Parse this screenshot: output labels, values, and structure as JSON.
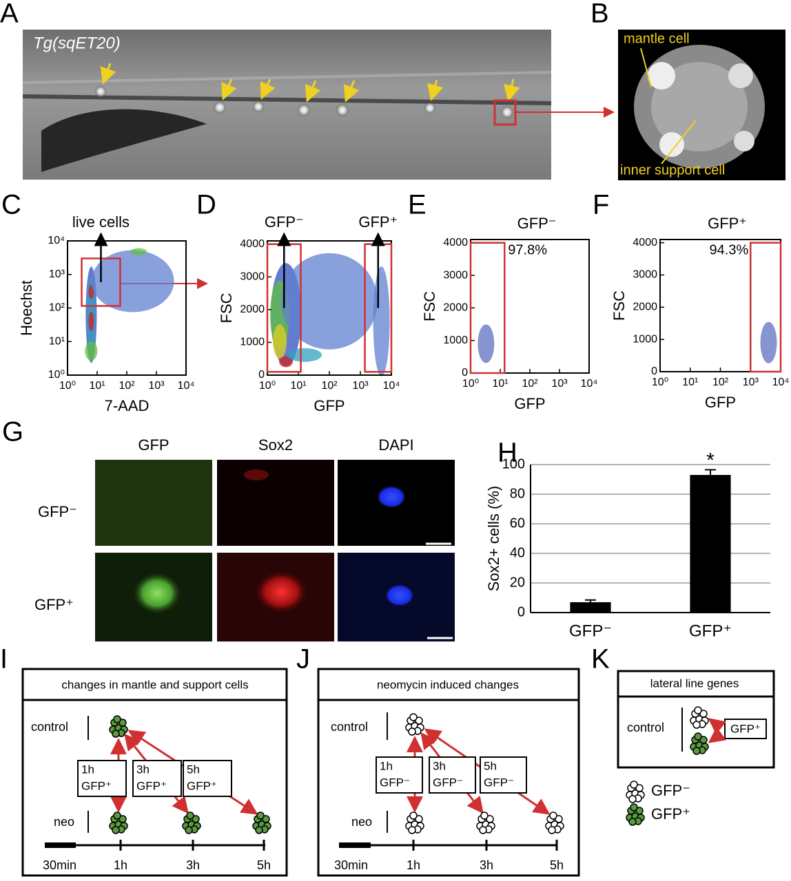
{
  "panels": {
    "A": {
      "label": "A",
      "annotation": "Tg(sqET20)"
    },
    "B": {
      "label": "B",
      "annotations": [
        "mantle cell",
        "inner support cell"
      ]
    },
    "G": {
      "label": "G",
      "columns": [
        "GFP",
        "Sox2",
        "DAPI"
      ],
      "rows": [
        "GFP⁻",
        "GFP⁺"
      ]
    },
    "I": {
      "label": "I",
      "title": "changes in mantle and support cells",
      "rows": [
        "control",
        "neo"
      ],
      "times": [
        "30min",
        "1h",
        "3h",
        "5h"
      ],
      "boxes": [
        [
          "1h",
          "GFP⁺"
        ],
        [
          "3h",
          "GFP⁺"
        ],
        [
          "5h",
          "GFP⁺"
        ]
      ]
    },
    "J": {
      "label": "J",
      "title": "neomycin induced changes",
      "rows": [
        "control",
        "neo"
      ],
      "times": [
        "30min",
        "1h",
        "3h",
        "5h"
      ],
      "boxes": [
        [
          "1h",
          "GFP⁻"
        ],
        [
          "3h",
          "GFP⁻"
        ],
        [
          "5h",
          "GFP⁻"
        ]
      ]
    },
    "K": {
      "label": "K",
      "title": "lateral line genes",
      "row": "control",
      "box": "GFP⁺",
      "legend": [
        "GFP⁻",
        "GFP⁺"
      ]
    }
  },
  "chart_data": [
    {
      "type": "density",
      "panel_label": "C",
      "xlabel": "7-AAD",
      "ylabel": "Hoechst",
      "xscale": "log",
      "yscale": "log",
      "xlim": [
        1,
        10000
      ],
      "ylim": [
        1,
        10000
      ],
      "xticks": [
        {
          "value": 1,
          "label": "10⁰"
        },
        {
          "value": 10,
          "label": "10¹"
        },
        {
          "value": 100,
          "label": "10²"
        },
        {
          "value": 1000,
          "label": "10³"
        },
        {
          "value": 10000,
          "label": "10⁴"
        }
      ],
      "yticks": [
        {
          "value": 1,
          "label": "10⁰"
        },
        {
          "value": 10,
          "label": "10¹"
        },
        {
          "value": 100,
          "label": "10²"
        },
        {
          "value": 1000,
          "label": "10³"
        },
        {
          "value": 10000,
          "label": "10⁴"
        }
      ],
      "gates": [
        {
          "label": "live cells",
          "xlim": [
            3,
            60
          ],
          "ylim": [
            115,
            3000
          ]
        }
      ]
    },
    {
      "type": "density",
      "panel_label": "D",
      "xlabel": "GFP",
      "ylabel": "FSC",
      "xscale": "log",
      "yscale": "linear",
      "xlim": [
        1,
        10000
      ],
      "ylim": [
        0,
        4100
      ],
      "xticks": [
        {
          "value": 1,
          "label": "10⁰"
        },
        {
          "value": 10,
          "label": "10¹"
        },
        {
          "value": 100,
          "label": "10²"
        },
        {
          "value": 1000,
          "label": "10³"
        },
        {
          "value": 10000,
          "label": "10⁴"
        }
      ],
      "yticks": [
        0,
        1000,
        2000,
        3000,
        4000
      ],
      "gates": [
        {
          "label": "GFP⁻",
          "xlim": [
            1,
            12
          ],
          "ylim": [
            100,
            4000
          ]
        },
        {
          "label": "GFP⁺",
          "xlim": [
            1400,
            10000
          ],
          "ylim": [
            100,
            4000
          ]
        }
      ]
    },
    {
      "type": "density",
      "panel_label": "E",
      "title": "GFP⁻",
      "xlabel": "GFP",
      "ylabel": "FSC",
      "xscale": "log",
      "yscale": "linear",
      "xlim": [
        1,
        10000
      ],
      "ylim": [
        0,
        4100
      ],
      "xticks": [
        {
          "value": 1,
          "label": "10⁰"
        },
        {
          "value": 10,
          "label": "10¹"
        },
        {
          "value": 100,
          "label": "10²"
        },
        {
          "value": 1000,
          "label": "10³"
        },
        {
          "value": 10000,
          "label": "10⁴"
        }
      ],
      "yticks": [
        0,
        1000,
        2000,
        3000,
        4000
      ],
      "gates": [
        {
          "label": "97.8%",
          "xlim": [
            1,
            14
          ],
          "ylim": [
            0,
            4000
          ]
        }
      ]
    },
    {
      "type": "density",
      "panel_label": "F",
      "title": "GFP⁺",
      "xlabel": "GFP",
      "ylabel": "FSC",
      "xscale": "log",
      "yscale": "linear",
      "xlim": [
        1,
        10000
      ],
      "ylim": [
        0,
        4100
      ],
      "xticks": [
        {
          "value": 1,
          "label": "10⁰"
        },
        {
          "value": 10,
          "label": "10¹"
        },
        {
          "value": 100,
          "label": "10²"
        },
        {
          "value": 1000,
          "label": "10³"
        },
        {
          "value": 10000,
          "label": "10⁴"
        }
      ],
      "yticks": [
        0,
        1000,
        2000,
        3000,
        4000
      ],
      "gates": [
        {
          "label": "94.3%",
          "xlim": [
            1000,
            10000
          ],
          "ylim": [
            0,
            4000
          ]
        }
      ]
    },
    {
      "type": "bar",
      "panel_label": "H",
      "ylabel": "Sox2+ cells (%)",
      "categories": [
        "GFP⁻",
        "GFP⁺"
      ],
      "values": [
        7,
        93
      ],
      "errors": [
        1.5,
        3.5
      ],
      "color": "#000000",
      "ylim": [
        0,
        100
      ],
      "yticks": [
        0,
        20,
        40,
        60,
        80,
        100
      ],
      "grid": true,
      "annotation": "*"
    }
  ]
}
